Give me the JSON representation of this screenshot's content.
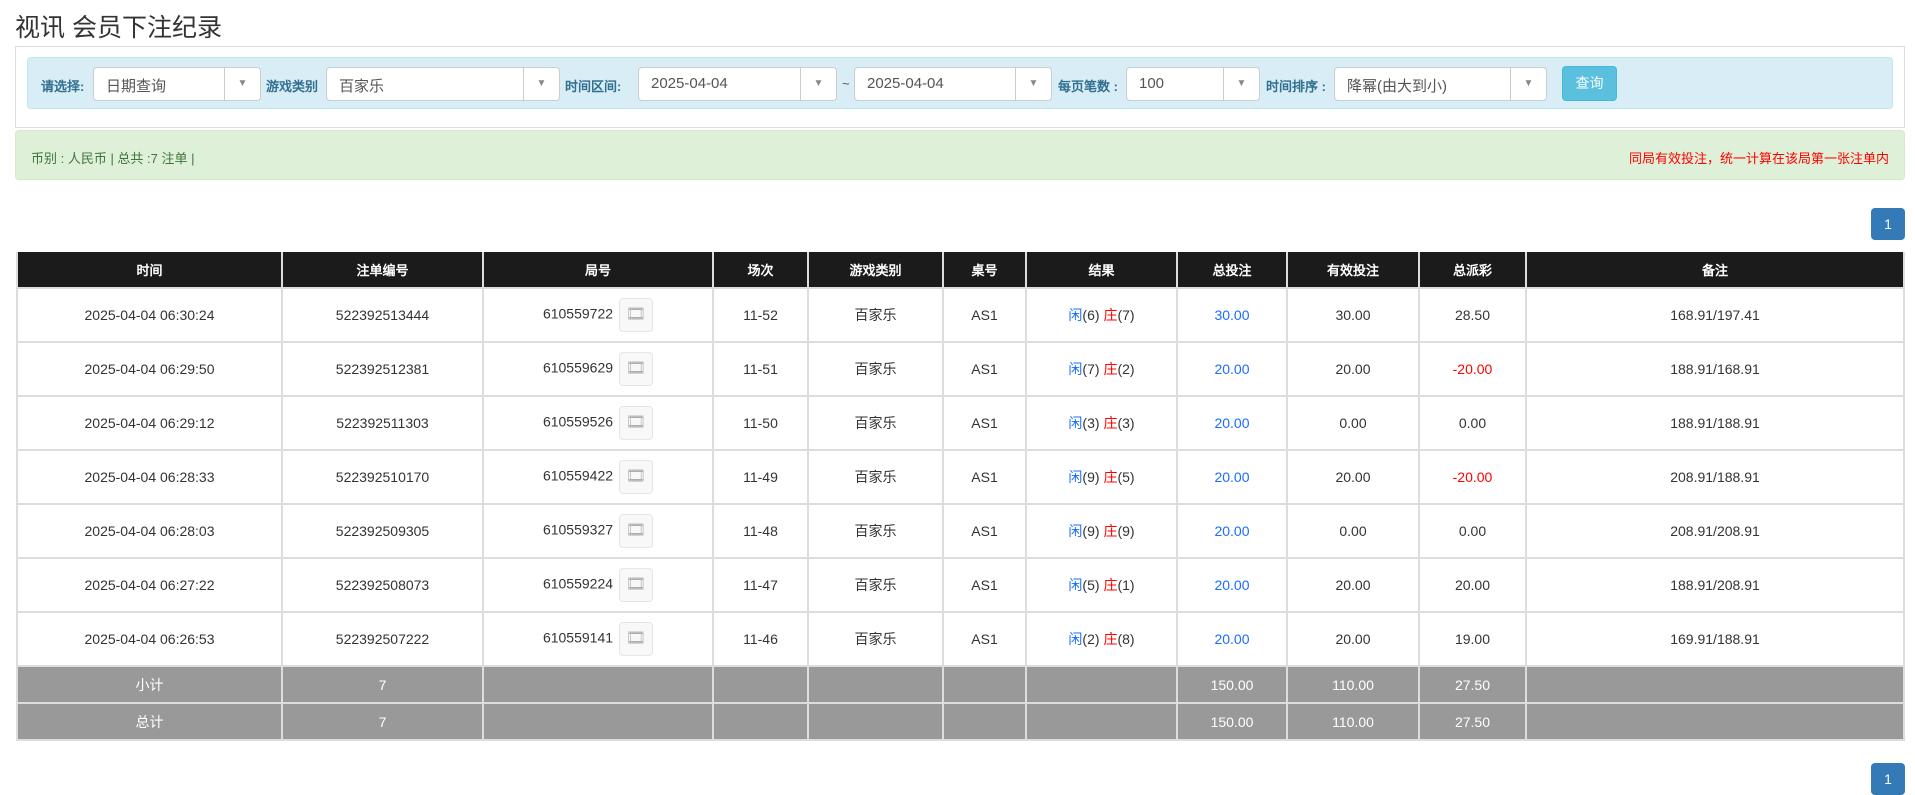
{
  "title": "视讯 会员下注纪录",
  "filters": {
    "select_label": "请选择:",
    "select_value": "日期查询",
    "game_label": "游戏类别",
    "game_value": "百家乐",
    "range_label": "时间区间:",
    "date_from": "2025-04-04",
    "tilde": "~",
    "date_to": "2025-04-04",
    "per_page_label": "每页笔数 :",
    "per_page_value": "100",
    "sort_label": "时间排序 :",
    "sort_value": "降幂(由大到小)",
    "query_button": "查询"
  },
  "summary": {
    "left": "币别 : 人民币 | 总共 :7 注单 |",
    "right": "同局有效投注，统一计算在该局第一张注单内"
  },
  "pagination": {
    "page": "1"
  },
  "colors": {
    "header": "#1b1b1b",
    "bet_blue": "#1a6dff",
    "loss_red": "#ff0000",
    "sum_row": "#999999",
    "filter_bg": "#d9edf7",
    "alert_bg": "#dff0d8"
  },
  "table": {
    "headers": [
      "时间",
      "注单编号",
      "局号",
      "场次",
      "游戏类别",
      "桌号",
      "结果",
      "总投注",
      "有效投注",
      "总派彩",
      "备注"
    ],
    "rows": [
      {
        "time": "2025-04-04 06:30:24",
        "bet_id": "522392513444",
        "round": "610559722",
        "shoe": "11-52",
        "game": "百家乐",
        "table": "AS1",
        "p": "闲",
        "pv": "(6)",
        "b": "庄",
        "bv": "(7)",
        "bet": "30.00",
        "valid": "30.00",
        "payout": "28.50",
        "neg": false,
        "note": "168.91/197.41"
      },
      {
        "time": "2025-04-04 06:29:50",
        "bet_id": "522392512381",
        "round": "610559629",
        "shoe": "11-51",
        "game": "百家乐",
        "table": "AS1",
        "p": "闲",
        "pv": "(7)",
        "b": "庄",
        "bv": "(2)",
        "bet": "20.00",
        "valid": "20.00",
        "payout": "-20.00",
        "neg": true,
        "note": "188.91/168.91"
      },
      {
        "time": "2025-04-04 06:29:12",
        "bet_id": "522392511303",
        "round": "610559526",
        "shoe": "11-50",
        "game": "百家乐",
        "table": "AS1",
        "p": "闲",
        "pv": "(3)",
        "b": "庄",
        "bv": "(3)",
        "bet": "20.00",
        "valid": "0.00",
        "payout": "0.00",
        "neg": false,
        "note": "188.91/188.91"
      },
      {
        "time": "2025-04-04 06:28:33",
        "bet_id": "522392510170",
        "round": "610559422",
        "shoe": "11-49",
        "game": "百家乐",
        "table": "AS1",
        "p": "闲",
        "pv": "(9)",
        "b": "庄",
        "bv": "(5)",
        "bet": "20.00",
        "valid": "20.00",
        "payout": "-20.00",
        "neg": true,
        "note": "208.91/188.91"
      },
      {
        "time": "2025-04-04 06:28:03",
        "bet_id": "522392509305",
        "round": "610559327",
        "shoe": "11-48",
        "game": "百家乐",
        "table": "AS1",
        "p": "闲",
        "pv": "(9)",
        "b": "庄",
        "bv": "(9)",
        "bet": "20.00",
        "valid": "0.00",
        "payout": "0.00",
        "neg": false,
        "note": "208.91/208.91"
      },
      {
        "time": "2025-04-04 06:27:22",
        "bet_id": "522392508073",
        "round": "610559224",
        "shoe": "11-47",
        "game": "百家乐",
        "table": "AS1",
        "p": "闲",
        "pv": "(5)",
        "b": "庄",
        "bv": "(1)",
        "bet": "20.00",
        "valid": "20.00",
        "payout": "20.00",
        "neg": false,
        "note": "188.91/208.91"
      },
      {
        "time": "2025-04-04 06:26:53",
        "bet_id": "522392507222",
        "round": "610559141",
        "shoe": "11-46",
        "game": "百家乐",
        "table": "AS1",
        "p": "闲",
        "pv": "(2)",
        "b": "庄",
        "bv": "(8)",
        "bet": "20.00",
        "valid": "20.00",
        "payout": "19.00",
        "neg": false,
        "note": "169.91/188.91"
      }
    ],
    "subtotal": {
      "label": "小计",
      "count": "7",
      "bet": "150.00",
      "valid": "110.00",
      "payout": "27.50"
    },
    "total": {
      "label": "总计",
      "count": "7",
      "bet": "150.00",
      "valid": "110.00",
      "payout": "27.50"
    }
  }
}
